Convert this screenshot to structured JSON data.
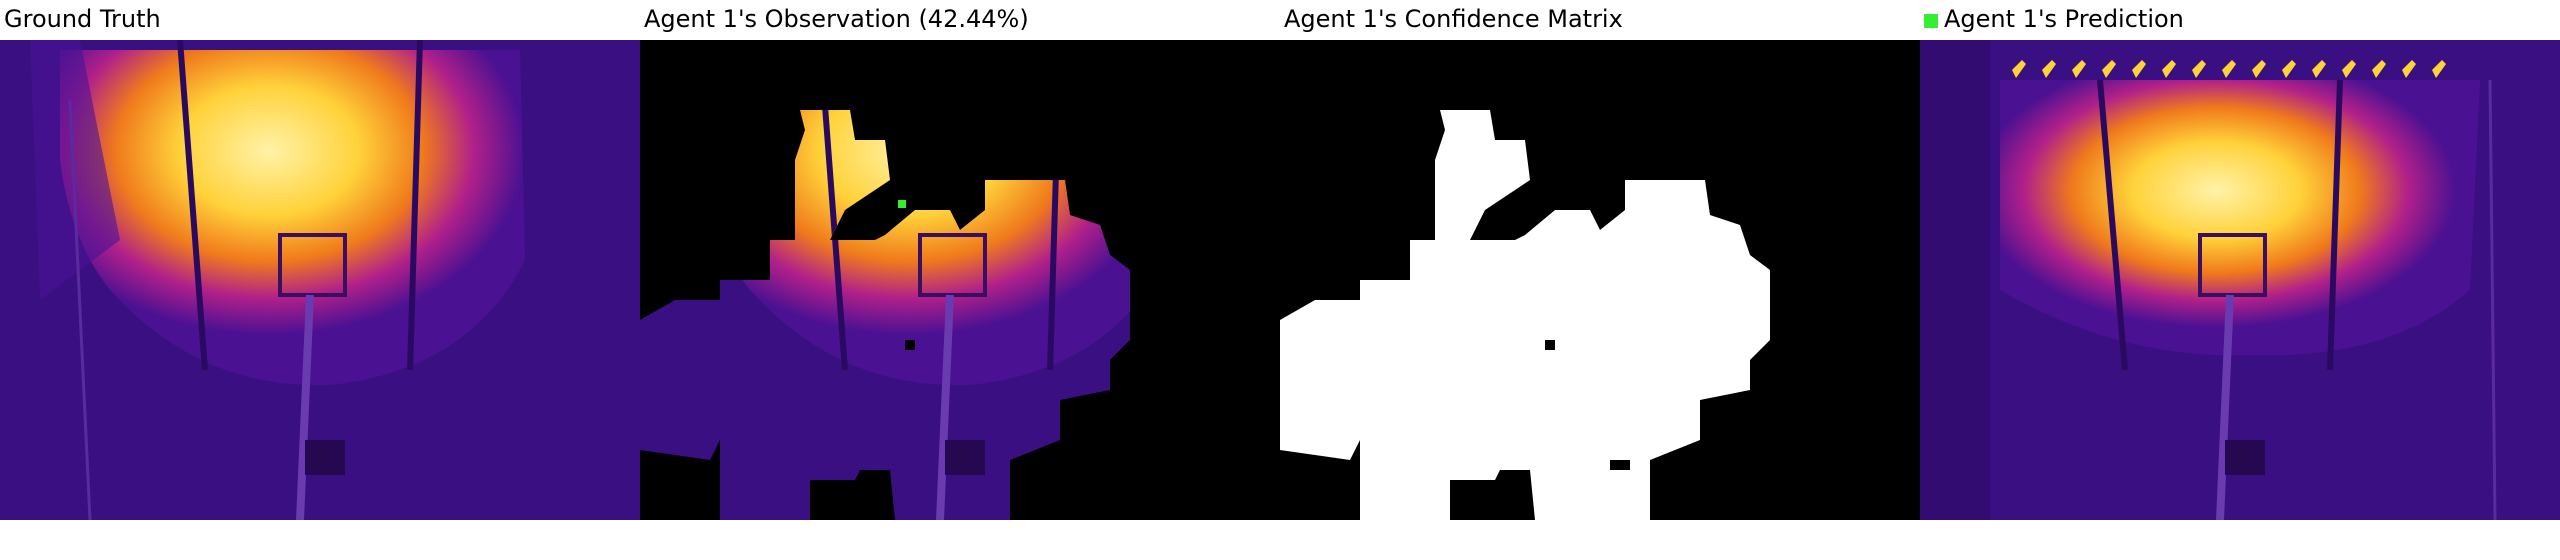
{
  "panels": [
    {
      "title": "Ground Truth"
    },
    {
      "title": "Agent 1's Observation (42.44%)"
    },
    {
      "title": "Agent 1's Confidence Matrix"
    },
    {
      "title": "Agent 1's Prediction",
      "legend_color": "#33ee33"
    }
  ],
  "colors": {
    "background_purple": "#3a0f82",
    "hot_yellow": "#ffd23a",
    "hot_orange": "#f07a1c",
    "magenta": "#9a1a8e",
    "mask_white": "#ffffff",
    "mask_black": "#000000"
  }
}
